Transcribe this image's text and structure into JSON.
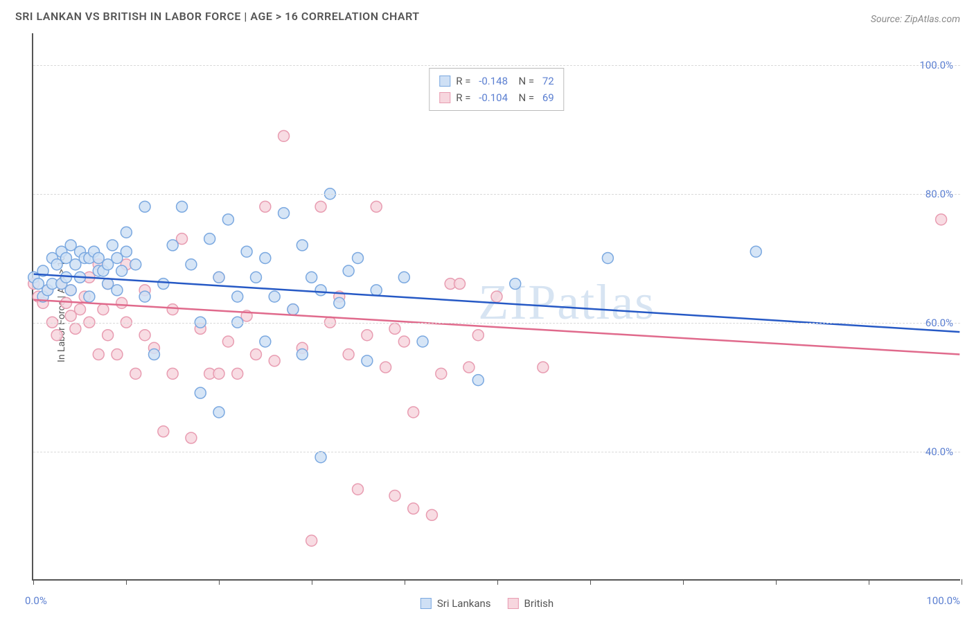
{
  "title": "SRI LANKAN VS BRITISH IN LABOR FORCE | AGE > 16 CORRELATION CHART",
  "source": "Source: ZipAtlas.com",
  "watermark": "ZIPatlas",
  "chart": {
    "type": "scatter",
    "y_axis_title": "In Labor Force | Age > 16",
    "xlim": [
      0,
      100
    ],
    "ylim": [
      20,
      105
    ],
    "x_tick_positions": [
      0,
      10,
      20,
      30,
      40,
      50,
      60,
      70,
      80,
      90,
      100
    ],
    "x_start_label": "0.0%",
    "x_end_label": "100.0%",
    "y_ticks": [
      {
        "v": 40,
        "label": "40.0%"
      },
      {
        "v": 60,
        "label": "60.0%"
      },
      {
        "v": 80,
        "label": "80.0%"
      },
      {
        "v": 100,
        "label": "100.0%"
      }
    ],
    "grid_color": "#d9d9d9",
    "background_color": "#ffffff",
    "axis_color": "#555555",
    "tick_label_color": "#5b7fd1",
    "marker_radius": 8,
    "marker_stroke_width": 1.5,
    "line_width": 2.5,
    "series": [
      {
        "name": "Sri Lankans",
        "fill": "#cfe0f5",
        "stroke": "#7aa8e0",
        "line_color": "#2659c5",
        "R": "-0.148",
        "N": "72",
        "regression": {
          "x1": 0,
          "y1": 67.5,
          "x2": 100,
          "y2": 58.5
        },
        "points": [
          [
            0,
            67
          ],
          [
            0.5,
            66
          ],
          [
            1,
            68
          ],
          [
            1,
            64
          ],
          [
            1.5,
            65
          ],
          [
            2,
            70
          ],
          [
            2,
            66
          ],
          [
            2.5,
            69
          ],
          [
            3,
            71
          ],
          [
            3,
            66
          ],
          [
            3.5,
            70
          ],
          [
            3.5,
            67
          ],
          [
            4,
            72
          ],
          [
            4,
            65
          ],
          [
            4.5,
            69
          ],
          [
            5,
            71
          ],
          [
            5,
            67
          ],
          [
            5.5,
            70
          ],
          [
            6,
            70
          ],
          [
            6,
            64
          ],
          [
            6.5,
            71
          ],
          [
            7,
            68
          ],
          [
            7,
            70
          ],
          [
            7.5,
            68
          ],
          [
            8,
            69
          ],
          [
            8,
            66
          ],
          [
            8.5,
            72
          ],
          [
            9,
            65
          ],
          [
            9,
            70
          ],
          [
            9.5,
            68
          ],
          [
            10,
            74
          ],
          [
            10,
            71
          ],
          [
            11,
            69
          ],
          [
            12,
            78
          ],
          [
            12,
            64
          ],
          [
            13,
            55
          ],
          [
            14,
            66
          ],
          [
            15,
            72
          ],
          [
            16,
            78
          ],
          [
            17,
            69
          ],
          [
            18,
            60
          ],
          [
            18,
            49
          ],
          [
            19,
            73
          ],
          [
            20,
            67
          ],
          [
            20,
            46
          ],
          [
            21,
            76
          ],
          [
            22,
            60
          ],
          [
            22,
            64
          ],
          [
            23,
            71
          ],
          [
            24,
            67
          ],
          [
            25,
            70
          ],
          [
            25,
            57
          ],
          [
            26,
            64
          ],
          [
            27,
            77
          ],
          [
            28,
            62
          ],
          [
            29,
            72
          ],
          [
            29,
            55
          ],
          [
            30,
            67
          ],
          [
            31,
            65
          ],
          [
            31,
            39
          ],
          [
            32,
            80
          ],
          [
            33,
            63
          ],
          [
            34,
            68
          ],
          [
            35,
            70
          ],
          [
            36,
            54
          ],
          [
            37,
            65
          ],
          [
            40,
            67
          ],
          [
            42,
            57
          ],
          [
            48,
            51
          ],
          [
            62,
            70
          ],
          [
            78,
            71
          ],
          [
            52,
            66
          ]
        ]
      },
      {
        "name": "British",
        "fill": "#f7d6de",
        "stroke": "#e89cb1",
        "line_color": "#e06a8c",
        "R": "-0.104",
        "N": "69",
        "regression": {
          "x1": 0,
          "y1": 63.5,
          "x2": 100,
          "y2": 55.0
        },
        "points": [
          [
            0,
            66
          ],
          [
            0.5,
            64
          ],
          [
            1,
            63
          ],
          [
            1.5,
            65
          ],
          [
            2,
            60
          ],
          [
            2.5,
            58
          ],
          [
            3,
            66
          ],
          [
            3.5,
            63
          ],
          [
            4,
            65
          ],
          [
            4,
            61
          ],
          [
            4.5,
            59
          ],
          [
            5,
            62
          ],
          [
            5.5,
            64
          ],
          [
            6,
            67
          ],
          [
            6,
            60
          ],
          [
            7,
            69
          ],
          [
            7,
            55
          ],
          [
            7.5,
            62
          ],
          [
            8,
            66
          ],
          [
            8,
            58
          ],
          [
            9,
            55
          ],
          [
            9.5,
            63
          ],
          [
            10,
            69
          ],
          [
            10,
            60
          ],
          [
            11,
            52
          ],
          [
            12,
            65
          ],
          [
            12,
            58
          ],
          [
            13,
            56
          ],
          [
            14,
            43
          ],
          [
            15,
            62
          ],
          [
            15,
            52
          ],
          [
            16,
            73
          ],
          [
            17,
            42
          ],
          [
            18,
            59
          ],
          [
            19,
            52
          ],
          [
            20,
            67
          ],
          [
            20,
            52
          ],
          [
            21,
            57
          ],
          [
            22,
            52
          ],
          [
            23,
            61
          ],
          [
            24,
            55
          ],
          [
            25,
            78
          ],
          [
            26,
            54
          ],
          [
            27,
            89
          ],
          [
            28,
            62
          ],
          [
            29,
            56
          ],
          [
            30,
            26
          ],
          [
            31,
            78
          ],
          [
            32,
            60
          ],
          [
            33,
            64
          ],
          [
            34,
            55
          ],
          [
            35,
            34
          ],
          [
            36,
            58
          ],
          [
            37,
            78
          ],
          [
            38,
            53
          ],
          [
            39,
            59
          ],
          [
            40,
            57
          ],
          [
            41,
            46
          ],
          [
            41,
            31
          ],
          [
            43,
            30
          ],
          [
            45,
            66
          ],
          [
            47,
            53
          ],
          [
            48,
            58
          ],
          [
            50,
            64
          ],
          [
            44,
            52
          ],
          [
            39,
            33
          ],
          [
            55,
            53
          ],
          [
            46,
            66
          ],
          [
            98,
            76
          ]
        ]
      }
    ]
  },
  "legend_bottom": [
    {
      "label": "Sri Lankans",
      "fill": "#cfe0f5",
      "stroke": "#7aa8e0"
    },
    {
      "label": "British",
      "fill": "#f7d6de",
      "stroke": "#e89cb1"
    }
  ]
}
